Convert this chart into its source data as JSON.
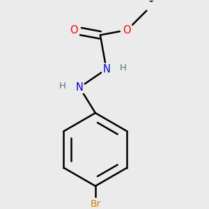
{
  "background_color": "#ebebeb",
  "bond_color": "#000000",
  "atom_colors": {
    "O": "#ff0000",
    "N": "#0000cc",
    "Br": "#cc8800",
    "H": "#507a7a",
    "C": "#000000"
  },
  "figsize": [
    3.0,
    3.0
  ],
  "dpi": 100
}
